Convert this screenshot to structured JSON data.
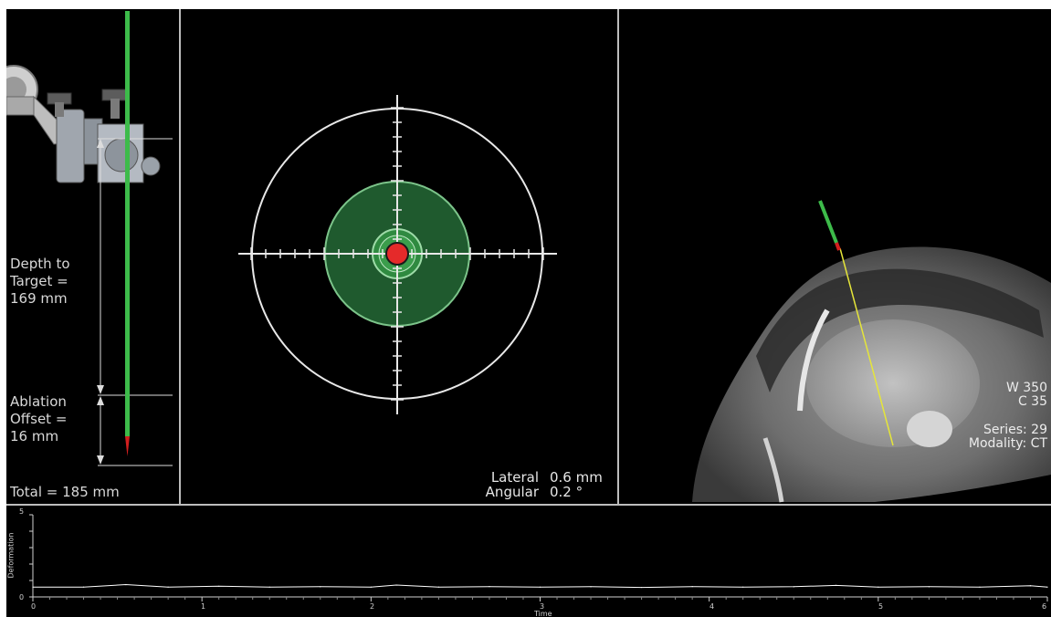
{
  "guide_panel": {
    "depth": {
      "line1": "Depth to",
      "line2": "Target =",
      "line3": "169 mm"
    },
    "offset": {
      "line1": "Ablation",
      "line2": "Offset =",
      "line3": "16 mm"
    },
    "total": "Total = 185 mm"
  },
  "alignment_panel": {
    "lateral_label": "Lateral",
    "lateral_value": "0.6 mm",
    "angular_label": "Angular",
    "angular_value": "0.2 °"
  },
  "ct_panel": {
    "window": "W 350",
    "center": "C 35",
    "series": "Series: 29",
    "modality": "Modality: CT"
  },
  "deformation_chart": {
    "ylabel": "Deformation",
    "xlabel": "Time",
    "y_ticks": [
      "5",
      "0"
    ],
    "x_ticks": [
      "0",
      "1",
      "2",
      "3",
      "4",
      "5",
      "6"
    ]
  },
  "chart_data": {
    "type": "line",
    "xlabel": "Time",
    "ylabel": "Deformation",
    "xlim": [
      0,
      6
    ],
    "ylim": [
      0,
      5
    ],
    "series": [
      {
        "x": [
          0,
          0.3,
          0.55,
          0.8,
          1.1,
          1.4,
          1.7,
          2.0,
          2.15,
          2.4,
          2.7,
          3.0,
          3.3,
          3.6,
          3.9,
          4.2,
          4.5,
          4.75,
          5.0,
          5.3,
          5.6,
          5.9,
          6.0
        ],
        "y": [
          0.6,
          0.6,
          0.75,
          0.6,
          0.65,
          0.6,
          0.62,
          0.6,
          0.72,
          0.6,
          0.63,
          0.6,
          0.62,
          0.58,
          0.63,
          0.6,
          0.62,
          0.7,
          0.6,
          0.62,
          0.6,
          0.68,
          0.6
        ]
      }
    ]
  },
  "colors": {
    "needle_green": "#3dbb4a",
    "needle_tip": "#d21e1e",
    "ablation_zone": "#1f5a2e",
    "target": "#e52a2a",
    "trajectory": "#e5e53a"
  }
}
